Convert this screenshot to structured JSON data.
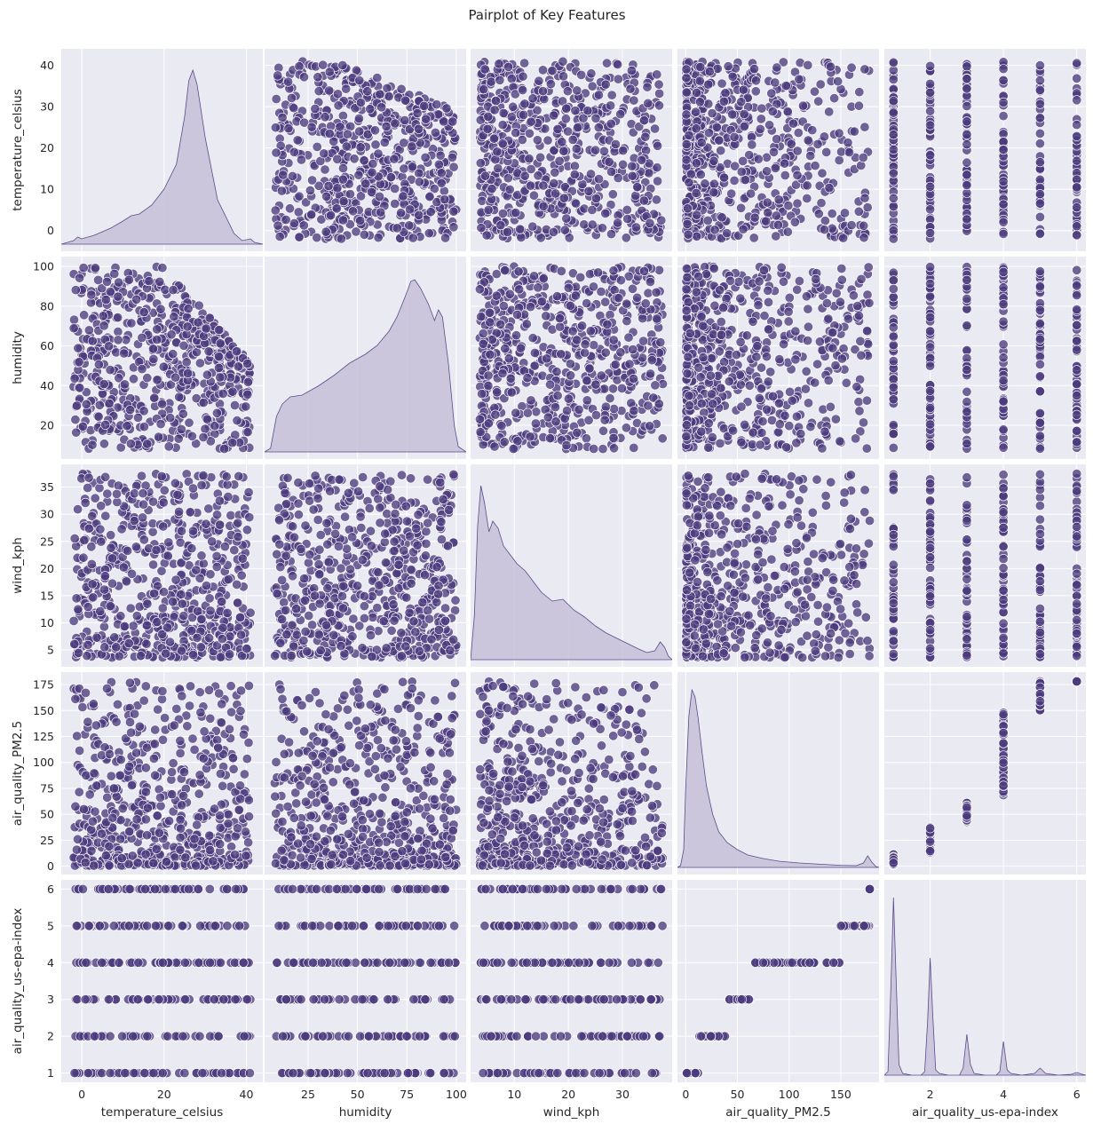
{
  "chart_data": {
    "type": "scatter",
    "title": "Pairplot of Key Features",
    "variables": [
      "temperature_celsius",
      "humidity",
      "wind_kph",
      "air_quality_PM2.5",
      "air_quality_us-epa-index"
    ],
    "diagonal": "kde",
    "off_diagonal": "scatter",
    "grid": true,
    "colors": {
      "point": "#4b3b7d",
      "point_edge": "#ffffff",
      "kde_fill": "#c6bfd8",
      "kde_line": "#5a4b8a",
      "panel_bg": "#eaeaf2",
      "grid": "#ffffff"
    },
    "axes": {
      "temperature_celsius": {
        "range": [
          -2,
          41
        ],
        "lim": [
          -5,
          44
        ],
        "ticks": [
          0,
          10,
          20,
          30,
          40
        ],
        "xticks": [
          0,
          20,
          40
        ]
      },
      "humidity": {
        "range": [
          8,
          100
        ],
        "lim": [
          3,
          105
        ],
        "ticks": [
          20,
          40,
          60,
          80,
          100
        ],
        "xticks": [
          0,
          25,
          50,
          75,
          100
        ]
      },
      "wind_kph": {
        "range": [
          3.6,
          37.5
        ],
        "lim": [
          1.9,
          39.2
        ],
        "ticks": [
          5,
          10,
          15,
          20,
          25,
          30,
          35
        ],
        "xticks": [
          0,
          10,
          20,
          30,
          40
        ]
      },
      "air_quality_PM2.5": {
        "range": [
          0.5,
          178
        ],
        "lim": [
          -8,
          187
        ],
        "ticks": [
          0,
          25,
          50,
          75,
          100,
          125,
          150,
          175
        ],
        "xticks": [
          0,
          50,
          100,
          150
        ]
      },
      "air_quality_us-epa-index": {
        "range": [
          1,
          6
        ],
        "lim": [
          0.75,
          6.25
        ],
        "ticks": [
          1,
          2,
          3,
          4,
          5,
          6
        ],
        "xticks": [
          2,
          4,
          6
        ]
      }
    },
    "kde_diagonals": [
      {
        "variable": "temperature_celsius",
        "x": [
          -5,
          -2,
          -1,
          0,
          3,
          7,
          10,
          12,
          14,
          17,
          20,
          23,
          25,
          26,
          27,
          28,
          30,
          33,
          37,
          39,
          41,
          42,
          44
        ],
        "density": [
          0,
          0.02,
          0.04,
          0.03,
          0.05,
          0.09,
          0.13,
          0.16,
          0.17,
          0.22,
          0.31,
          0.45,
          0.72,
          0.92,
          0.98,
          0.9,
          0.6,
          0.25,
          0.06,
          0.02,
          0.03,
          0.01,
          0
        ]
      },
      {
        "variable": "humidity",
        "x": [
          3,
          6,
          9,
          12,
          16,
          22,
          30,
          38,
          46,
          54,
          60,
          66,
          70,
          74,
          77,
          79,
          82,
          86,
          89,
          91,
          93,
          96,
          99,
          101,
          105
        ],
        "density": [
          0,
          0.02,
          0.2,
          0.27,
          0.31,
          0.32,
          0.37,
          0.43,
          0.5,
          0.55,
          0.6,
          0.68,
          0.76,
          0.87,
          0.96,
          0.97,
          0.92,
          0.83,
          0.74,
          0.8,
          0.76,
          0.5,
          0.15,
          0.03,
          0
        ]
      },
      {
        "variable": "wind_kph",
        "x": [
          1.9,
          2.6,
          3.2,
          3.8,
          4.5,
          5.3,
          6,
          7,
          8,
          9,
          10.5,
          12,
          13.5,
          15,
          17,
          19,
          21,
          23,
          25,
          27,
          29,
          31,
          33,
          34.5,
          36,
          37,
          37.8,
          38.5,
          39.2
        ],
        "density": [
          0,
          0.25,
          0.75,
          0.98,
          0.88,
          0.72,
          0.78,
          0.74,
          0.64,
          0.6,
          0.54,
          0.5,
          0.44,
          0.38,
          0.33,
          0.34,
          0.28,
          0.24,
          0.19,
          0.15,
          0.12,
          0.09,
          0.06,
          0.04,
          0.05,
          0.1,
          0.07,
          0.02,
          0
        ]
      },
      {
        "variable": "air_quality_PM2.5",
        "x": [
          -8,
          -5,
          -2,
          0,
          3,
          6,
          9,
          12,
          16,
          20,
          26,
          32,
          40,
          50,
          60,
          75,
          90,
          110,
          130,
          150,
          165,
          172,
          176,
          180,
          184,
          187
        ],
        "density": [
          0,
          0.01,
          0.1,
          0.45,
          0.85,
          1.0,
          0.96,
          0.84,
          0.64,
          0.46,
          0.3,
          0.2,
          0.14,
          0.1,
          0.07,
          0.05,
          0.035,
          0.025,
          0.018,
          0.012,
          0.01,
          0.025,
          0.065,
          0.03,
          0.005,
          0
        ]
      },
      {
        "variable": "air_quality_us-epa-index",
        "x": [
          0.75,
          0.85,
          0.93,
          1.0,
          1.07,
          1.15,
          1.25,
          1.5,
          1.75,
          1.85,
          1.93,
          2.0,
          2.07,
          2.15,
          2.25,
          2.5,
          2.8,
          2.9,
          3.0,
          3.1,
          3.2,
          3.5,
          3.8,
          3.9,
          4.0,
          4.1,
          4.2,
          4.5,
          4.85,
          5.0,
          5.15,
          5.5,
          5.85,
          6.0,
          6.15,
          6.25
        ],
        "density": [
          0,
          0.02,
          0.5,
          1.0,
          0.55,
          0.06,
          0.01,
          0,
          0,
          0.02,
          0.3,
          0.66,
          0.34,
          0.03,
          0.01,
          0,
          0,
          0.04,
          0.23,
          0.06,
          0.01,
          0,
          0,
          0.02,
          0.19,
          0.03,
          0.01,
          0,
          0.01,
          0.04,
          0.01,
          0,
          0.005,
          0.015,
          0.005,
          0
        ]
      }
    ]
  }
}
